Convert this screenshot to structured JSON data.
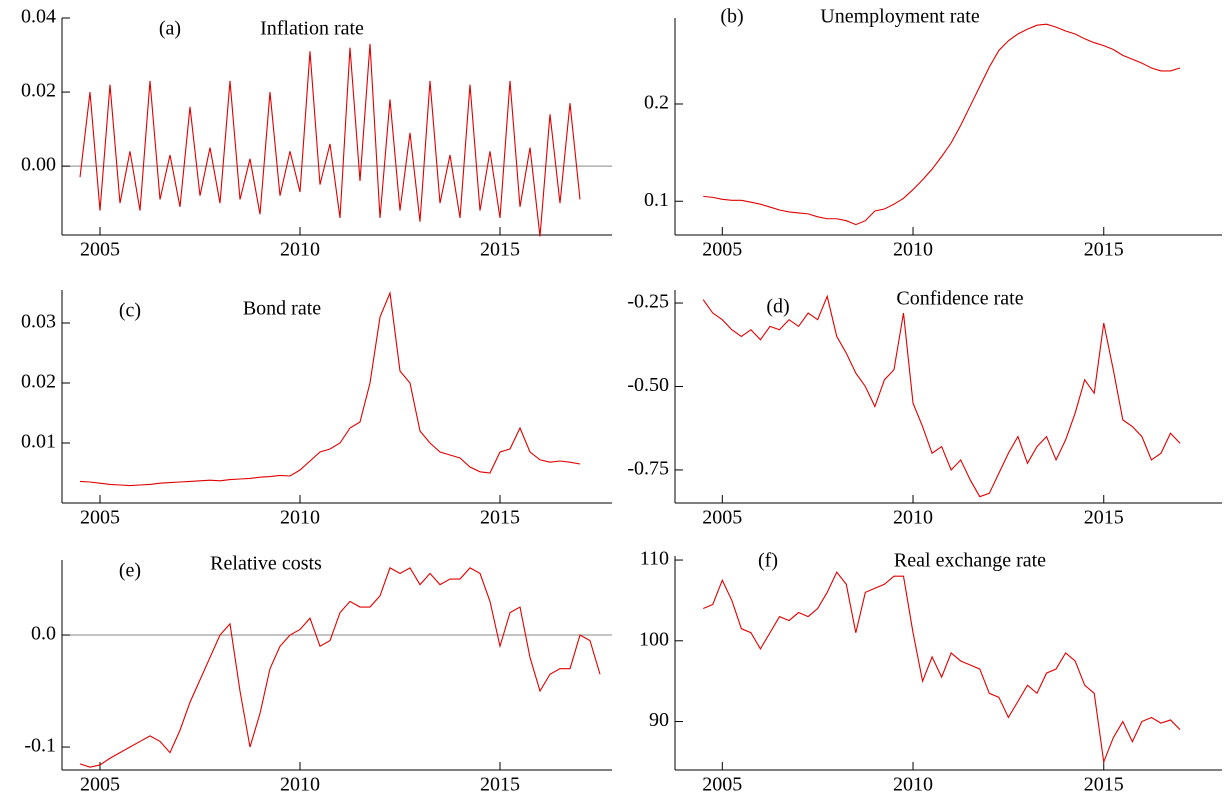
{
  "chart_data": [
    {
      "type": "line",
      "label": "(a)",
      "title": "Inflation rate",
      "color": "#e00000",
      "zero_line": true,
      "xlim": [
        2004.05,
        2017.8
      ],
      "xticks": [
        2005,
        2010,
        2015
      ],
      "ylim": [
        -0.0186,
        0.04
      ],
      "yticks": [
        {
          "value": 0,
          "label": "0.00"
        },
        0.02,
        0.04
      ],
      "x": [
        2004.5,
        2004.75,
        2005,
        2005.25,
        2005.5,
        2005.75,
        2006,
        2006.25,
        2006.5,
        2006.75,
        2007,
        2007.25,
        2007.5,
        2007.75,
        2008,
        2008.25,
        2008.5,
        2008.75,
        2009,
        2009.25,
        2009.5,
        2009.75,
        2010,
        2010.25,
        2010.5,
        2010.75,
        2011,
        2011.25,
        2011.5,
        2011.75,
        2012,
        2012.25,
        2012.5,
        2012.75,
        2013,
        2013.25,
        2013.5,
        2013.75,
        2014,
        2014.25,
        2014.5,
        2014.75,
        2015,
        2015.25,
        2015.5,
        2015.75,
        2016,
        2016.25,
        2016.5,
        2016.75,
        2017
      ],
      "values": [
        -0.003,
        0.02,
        -0.012,
        0.022,
        -0.01,
        0.004,
        -0.012,
        0.023,
        -0.009,
        0.003,
        -0.011,
        0.016,
        -0.008,
        0.005,
        -0.01,
        0.023,
        -0.009,
        0.002,
        -0.013,
        0.02,
        -0.008,
        0.004,
        -0.007,
        0.031,
        -0.005,
        0.006,
        -0.014,
        0.032,
        -0.004,
        0.033,
        -0.014,
        0.018,
        -0.012,
        0.009,
        -0.015,
        0.023,
        -0.01,
        0.003,
        -0.014,
        0.022,
        -0.012,
        0.004,
        -0.014,
        0.023,
        -0.011,
        0.005,
        -0.019,
        0.014,
        -0.01,
        0.017,
        -0.009
      ]
    },
    {
      "type": "line",
      "label": "(b)",
      "title": "Unemployment rate",
      "color": "#e00000",
      "zero_line": false,
      "xlim": [
        2003.76,
        2018.1
      ],
      "xticks": [
        2005,
        2010,
        2015
      ],
      "ylim": [
        0.0653,
        0.2884
      ],
      "yticks": [
        0.1,
        0.2
      ],
      "x": [
        2004.5,
        2004.75,
        2005,
        2005.25,
        2005.5,
        2005.75,
        2006,
        2006.25,
        2006.5,
        2006.75,
        2007,
        2007.25,
        2007.5,
        2007.75,
        2008,
        2008.25,
        2008.5,
        2008.75,
        2009,
        2009.25,
        2009.5,
        2009.75,
        2010,
        2010.25,
        2010.5,
        2010.75,
        2011,
        2011.25,
        2011.5,
        2011.75,
        2012,
        2012.25,
        2012.5,
        2012.75,
        2013,
        2013.25,
        2013.5,
        2013.75,
        2014,
        2014.25,
        2014.5,
        2014.75,
        2015,
        2015.25,
        2015.5,
        2015.75,
        2016,
        2016.25,
        2016.5,
        2016.75,
        2017
      ],
      "values": [
        0.105,
        0.104,
        0.102,
        0.101,
        0.101,
        0.099,
        0.097,
        0.094,
        0.091,
        0.089,
        0.088,
        0.087,
        0.084,
        0.082,
        0.082,
        0.08,
        0.076,
        0.08,
        0.09,
        0.092,
        0.097,
        0.103,
        0.112,
        0.122,
        0.133,
        0.146,
        0.16,
        0.178,
        0.198,
        0.218,
        0.238,
        0.255,
        0.265,
        0.272,
        0.277,
        0.281,
        0.282,
        0.279,
        0.275,
        0.272,
        0.267,
        0.263,
        0.26,
        0.256,
        0.25,
        0.246,
        0.242,
        0.237,
        0.234,
        0.234,
        0.237
      ]
    },
    {
      "type": "line",
      "label": "(c)",
      "title": "Bond rate",
      "color": "#e00000",
      "zero_line": false,
      "xlim": [
        2004.05,
        2017.8
      ],
      "xticks": [
        2005,
        2010,
        2015
      ],
      "ylim": [
        0.0,
        0.0355
      ],
      "yticks": [
        0.01,
        0.02,
        0.03
      ],
      "x": [
        2004.5,
        2004.75,
        2005,
        2005.25,
        2005.5,
        2005.75,
        2006,
        2006.25,
        2006.5,
        2006.75,
        2007,
        2007.25,
        2007.5,
        2007.75,
        2008,
        2008.25,
        2008.5,
        2008.75,
        2009,
        2009.25,
        2009.5,
        2009.75,
        2010,
        2010.25,
        2010.5,
        2010.75,
        2011,
        2011.25,
        2011.5,
        2011.75,
        2012,
        2012.25,
        2012.5,
        2012.75,
        2013,
        2013.25,
        2013.5,
        2013.75,
        2014,
        2014.25,
        2014.5,
        2014.75,
        2015,
        2015.25,
        2015.5,
        2015.75,
        2016,
        2016.25,
        2016.5,
        2016.75,
        2017
      ],
      "values": [
        0.0036,
        0.0035,
        0.0033,
        0.0031,
        0.003,
        0.0029,
        0.003,
        0.0031,
        0.0033,
        0.0034,
        0.0035,
        0.0036,
        0.0037,
        0.0038,
        0.0037,
        0.0039,
        0.004,
        0.0041,
        0.0043,
        0.0044,
        0.0046,
        0.0045,
        0.0055,
        0.007,
        0.0085,
        0.009,
        0.01,
        0.0125,
        0.0135,
        0.02,
        0.031,
        0.035,
        0.022,
        0.02,
        0.012,
        0.01,
        0.0085,
        0.008,
        0.0075,
        0.006,
        0.0052,
        0.005,
        0.0085,
        0.009,
        0.0125,
        0.0085,
        0.0072,
        0.0068,
        0.007,
        0.0068,
        0.0065
      ]
    },
    {
      "type": "line",
      "label": "(d)",
      "title": "Confidence rate",
      "color": "#e00000",
      "zero_line": false,
      "xlim": [
        2003.76,
        2018.1
      ],
      "xticks": [
        2005,
        2010,
        2015
      ],
      "ylim": [
        -0.849,
        -0.211
      ],
      "yticks": [
        -0.75,
        {
          "value": -0.5,
          "label": "-0.50"
        },
        -0.25
      ],
      "x": [
        2004.5,
        2004.75,
        2005,
        2005.25,
        2005.5,
        2005.75,
        2006,
        2006.25,
        2006.5,
        2006.75,
        2007,
        2007.25,
        2007.5,
        2007.75,
        2008,
        2008.25,
        2008.5,
        2008.75,
        2009,
        2009.25,
        2009.5,
        2009.75,
        2010,
        2010.25,
        2010.5,
        2010.75,
        2011,
        2011.25,
        2011.5,
        2011.75,
        2012,
        2012.25,
        2012.5,
        2012.75,
        2013,
        2013.25,
        2013.5,
        2013.75,
        2014,
        2014.25,
        2014.5,
        2014.75,
        2015,
        2015.25,
        2015.5,
        2015.75,
        2016,
        2016.25,
        2016.5,
        2016.75,
        2017
      ],
      "values": [
        -0.24,
        -0.28,
        -0.3,
        -0.33,
        -0.35,
        -0.33,
        -0.36,
        -0.32,
        -0.33,
        -0.3,
        -0.32,
        -0.28,
        -0.3,
        -0.23,
        -0.35,
        -0.4,
        -0.46,
        -0.5,
        -0.56,
        -0.48,
        -0.45,
        -0.28,
        -0.55,
        -0.62,
        -0.7,
        -0.68,
        -0.75,
        -0.72,
        -0.78,
        -0.83,
        -0.82,
        -0.76,
        -0.7,
        -0.65,
        -0.73,
        -0.68,
        -0.65,
        -0.72,
        -0.66,
        -0.58,
        -0.48,
        -0.52,
        -0.31,
        -0.45,
        -0.6,
        -0.62,
        -0.65,
        -0.72,
        -0.7,
        -0.64,
        -0.67
      ]
    },
    {
      "type": "line",
      "label": "(e)",
      "title": "Relative costs",
      "color": "#e00000",
      "zero_line": true,
      "xlim": [
        2004.05,
        2017.8
      ],
      "xticks": [
        2005,
        2010,
        2015
      ],
      "ylim": [
        -0.1205,
        0.067
      ],
      "yticks": [
        -0.1,
        {
          "value": 0,
          "label": "0.0"
        }
      ],
      "x": [
        2004.5,
        2004.75,
        2005,
        2005.25,
        2005.5,
        2005.75,
        2006,
        2006.25,
        2006.5,
        2006.75,
        2007,
        2007.25,
        2007.5,
        2007.75,
        2008,
        2008.25,
        2008.5,
        2008.75,
        2009,
        2009.25,
        2009.5,
        2009.75,
        2010,
        2010.25,
        2010.5,
        2010.75,
        2011,
        2011.25,
        2011.5,
        2011.75,
        2012,
        2012.25,
        2012.5,
        2012.75,
        2013,
        2013.25,
        2013.5,
        2013.75,
        2014,
        2014.25,
        2014.5,
        2014.75,
        2015,
        2015.25,
        2015.5,
        2015.75,
        2016,
        2016.25,
        2016.5,
        2016.75,
        2017,
        2017.25,
        2017.5
      ],
      "values": [
        -0.115,
        -0.118,
        -0.116,
        -0.11,
        -0.105,
        -0.1,
        -0.095,
        -0.09,
        -0.095,
        -0.105,
        -0.085,
        -0.06,
        -0.04,
        -0.02,
        0.0,
        0.01,
        -0.05,
        -0.1,
        -0.07,
        -0.03,
        -0.01,
        0.0,
        0.005,
        0.015,
        -0.01,
        -0.005,
        0.02,
        0.03,
        0.025,
        0.025,
        0.035,
        0.06,
        0.055,
        0.06,
        0.045,
        0.055,
        0.045,
        0.05,
        0.05,
        0.06,
        0.055,
        0.03,
        -0.01,
        0.02,
        0.025,
        -0.02,
        -0.05,
        -0.035,
        -0.03,
        -0.03,
        0.0,
        -0.005,
        -0.035
      ]
    },
    {
      "type": "line",
      "label": "(f)",
      "title": "Real exchange rate",
      "color": "#e00000",
      "zero_line": false,
      "xlim": [
        2003.76,
        2018.1
      ],
      "xticks": [
        2005,
        2010,
        2015
      ],
      "ylim": [
        84,
        110.5
      ],
      "yticks": [
        90,
        100,
        110
      ],
      "x": [
        2004.5,
        2004.75,
        2005,
        2005.25,
        2005.5,
        2005.75,
        2006,
        2006.25,
        2006.5,
        2006.75,
        2007,
        2007.25,
        2007.5,
        2007.75,
        2008,
        2008.25,
        2008.5,
        2008.75,
        2009,
        2009.25,
        2009.5,
        2009.75,
        2010,
        2010.25,
        2010.5,
        2010.75,
        2011,
        2011.25,
        2011.5,
        2011.75,
        2012,
        2012.25,
        2012.5,
        2012.75,
        2013,
        2013.25,
        2013.5,
        2013.75,
        2014,
        2014.25,
        2014.5,
        2014.75,
        2015,
        2015.25,
        2015.5,
        2015.75,
        2016,
        2016.25,
        2016.5,
        2016.75,
        2017
      ],
      "values": [
        104,
        104.5,
        107.5,
        105,
        101.5,
        101,
        99,
        101,
        103,
        102.5,
        103.5,
        103,
        104,
        106,
        108.5,
        107,
        101,
        106,
        106.5,
        107,
        108,
        108,
        101,
        95,
        98,
        95.5,
        98.5,
        97.5,
        97,
        96.5,
        93.5,
        93,
        90.5,
        92.5,
        94.5,
        93.5,
        96,
        96.5,
        98.5,
        97.5,
        94.5,
        93.5,
        85,
        88,
        90,
        87.5,
        90,
        90.5,
        89.8,
        90.2,
        89
      ]
    }
  ]
}
